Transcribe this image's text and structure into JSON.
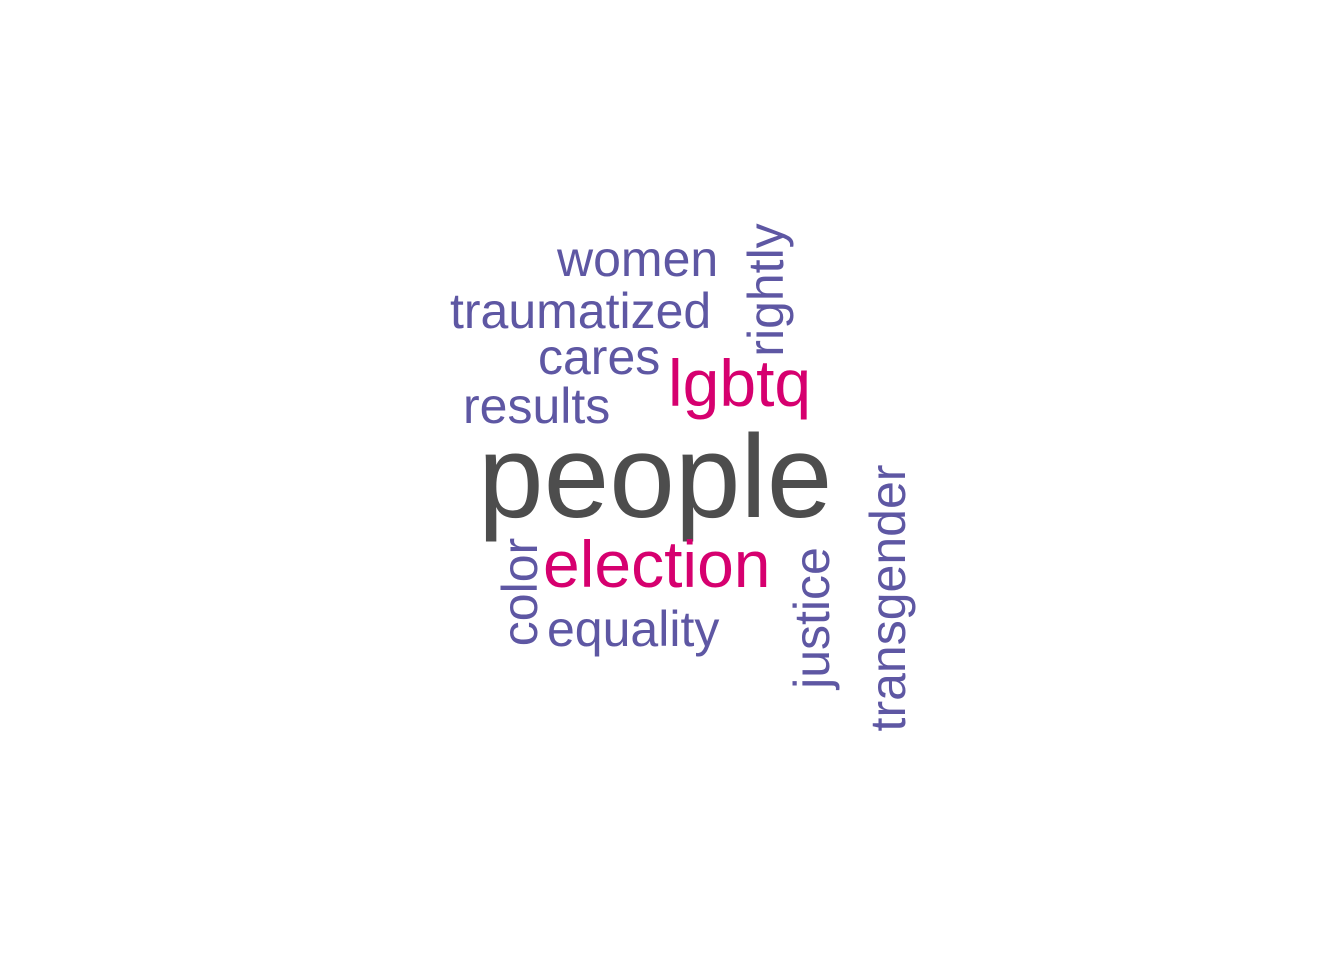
{
  "colors": {
    "primary": "#4d4d4d",
    "accent": "#d6006f",
    "secondary": "#5e57a3"
  },
  "words": {
    "people": "people",
    "election": "election",
    "lgbtq": "lgbtq",
    "women": "women",
    "traumatized": "traumatized",
    "cares": "cares",
    "results": "results",
    "equality": "equality",
    "rightly": "rightly",
    "color": "color",
    "justice": "justice",
    "transgender": "transgender"
  }
}
